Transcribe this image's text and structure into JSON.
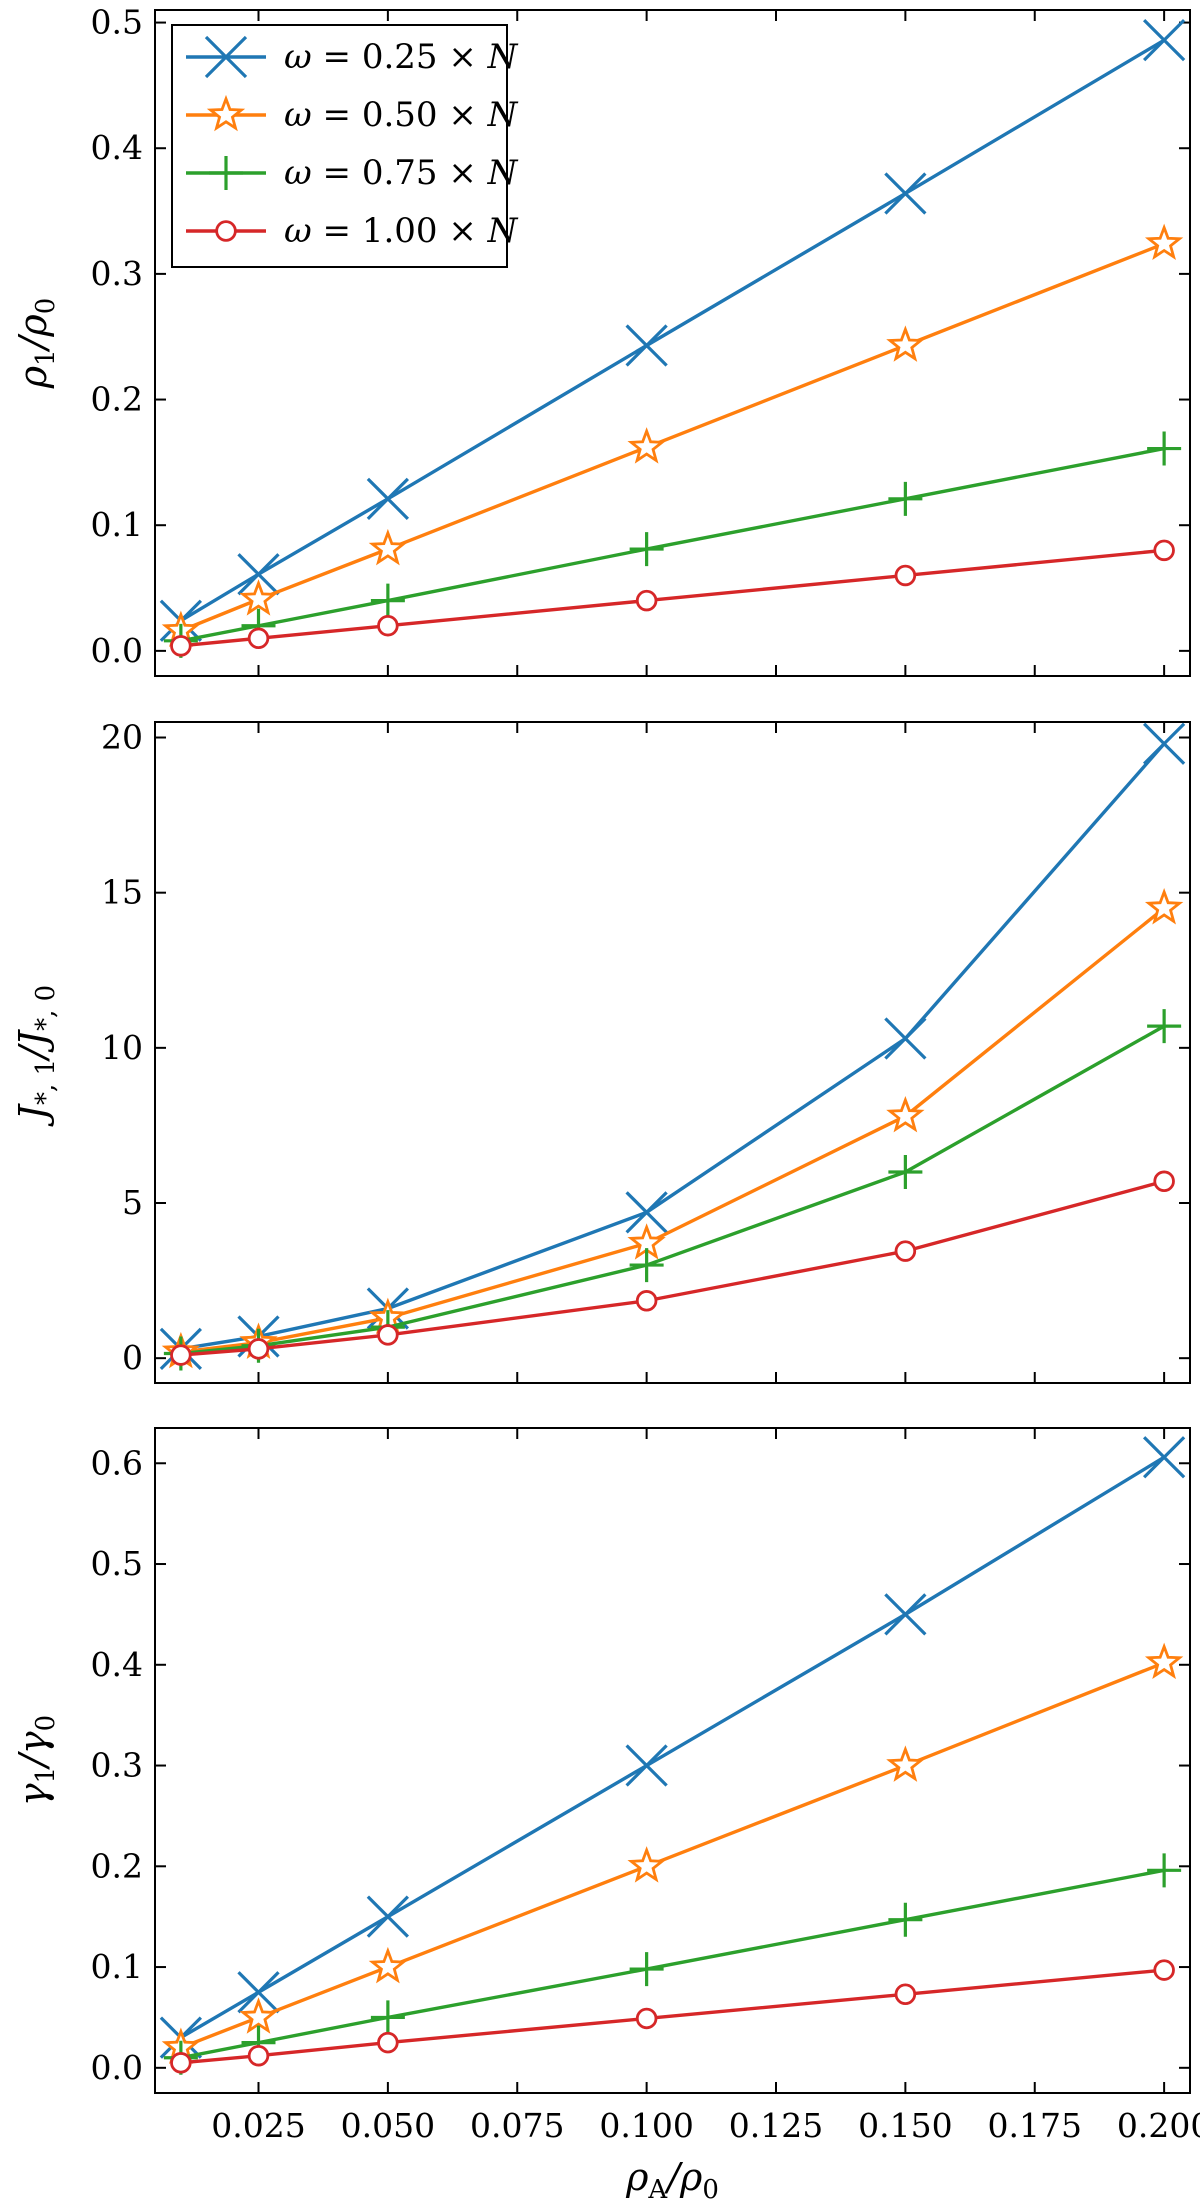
{
  "colors": {
    "blue": "#1f77b4",
    "orange": "#ff7f0e",
    "green": "#2ca02c",
    "red": "#d62728"
  },
  "chart_data": [
    {
      "type": "line",
      "xlabel": "",
      "ylabel_base": "ρ",
      "ylabel_num_sub": "1",
      "ylabel_den_sub": "0",
      "xlim": [
        0.005,
        0.205
      ],
      "ylim": [
        -0.02,
        0.51
      ],
      "xticks": [
        0.025,
        0.05,
        0.075,
        0.1,
        0.125,
        0.15,
        0.175,
        0.2
      ],
      "xtick_labels": [],
      "yticks": [
        0.0,
        0.1,
        0.2,
        0.3,
        0.4,
        0.5
      ],
      "ytick_labels": [
        "0.0",
        "0.1",
        "0.2",
        "0.3",
        "0.4",
        "0.5"
      ],
      "legend": "top-left",
      "grid": false,
      "x": [
        0.01,
        0.025,
        0.05,
        0.1,
        0.15,
        0.2
      ],
      "series": [
        {
          "name": "ω = 0.25 × N",
          "legend_prefix": "ω = ",
          "legend_value": "0.25",
          "legend_suffix": " × N",
          "color": "#1f77b4",
          "marker": "x",
          "values": [
            0.024,
            0.061,
            0.121,
            0.243,
            0.364,
            0.486
          ]
        },
        {
          "name": "ω = 0.50 × N",
          "legend_prefix": "ω = ",
          "legend_value": "0.50",
          "legend_suffix": " × N",
          "color": "#ff7f0e",
          "marker": "star",
          "values": [
            0.016,
            0.041,
            0.081,
            0.162,
            0.243,
            0.324
          ]
        },
        {
          "name": "ω = 0.75 × N",
          "legend_prefix": "ω = ",
          "legend_value": "0.75",
          "legend_suffix": " × N",
          "color": "#2ca02c",
          "marker": "plus",
          "values": [
            0.008,
            0.02,
            0.04,
            0.081,
            0.121,
            0.161
          ]
        },
        {
          "name": "ω = 1.00 × N",
          "legend_prefix": "ω = ",
          "legend_value": "1.00",
          "legend_suffix": " × N",
          "color": "#d62728",
          "marker": "circle",
          "values": [
            0.004,
            0.01,
            0.02,
            0.04,
            0.06,
            0.08
          ]
        }
      ]
    },
    {
      "type": "line",
      "xlabel": "",
      "ylabel_base": "J",
      "ylabel_num_sub": "*, 1",
      "ylabel_den_sub": "*, 0",
      "xlim": [
        0.005,
        0.205
      ],
      "ylim": [
        -0.8,
        20.5
      ],
      "xticks": [
        0.025,
        0.05,
        0.075,
        0.1,
        0.125,
        0.15,
        0.175,
        0.2
      ],
      "xtick_labels": [],
      "yticks": [
        0,
        5,
        10,
        15,
        20
      ],
      "ytick_labels": [
        "0",
        "5",
        "10",
        "15",
        "20"
      ],
      "grid": false,
      "x": [
        0.01,
        0.025,
        0.05,
        0.1,
        0.15,
        0.2
      ],
      "series": [
        {
          "color": "#1f77b4",
          "marker": "x",
          "values": [
            0.3,
            0.7,
            1.6,
            4.7,
            10.3,
            19.8
          ]
        },
        {
          "color": "#ff7f0e",
          "marker": "star",
          "values": [
            0.2,
            0.5,
            1.3,
            3.7,
            7.8,
            14.5
          ]
        },
        {
          "color": "#2ca02c",
          "marker": "plus",
          "values": [
            0.15,
            0.4,
            1.0,
            3.0,
            6.0,
            10.7
          ]
        },
        {
          "color": "#d62728",
          "marker": "circle",
          "values": [
            0.1,
            0.3,
            0.75,
            1.85,
            3.45,
            5.7
          ]
        }
      ]
    },
    {
      "type": "line",
      "xlabel_base": "ρ",
      "xlabel_num_sub": "A",
      "xlabel_den_sub": "0",
      "ylabel_base": "γ",
      "ylabel_num_sub": "1",
      "ylabel_den_sub": "0",
      "xlim": [
        0.005,
        0.205
      ],
      "ylim": [
        -0.025,
        0.635
      ],
      "xticks": [
        0.025,
        0.05,
        0.075,
        0.1,
        0.125,
        0.15,
        0.175,
        0.2
      ],
      "xtick_labels": [
        "0.025",
        "0.050",
        "0.075",
        "0.100",
        "0.125",
        "0.150",
        "0.175",
        "0.200"
      ],
      "yticks": [
        0.0,
        0.1,
        0.2,
        0.3,
        0.4,
        0.5,
        0.6
      ],
      "ytick_labels": [
        "0.0",
        "0.1",
        "0.2",
        "0.3",
        "0.4",
        "0.5",
        "0.6"
      ],
      "grid": false,
      "x": [
        0.01,
        0.025,
        0.05,
        0.1,
        0.15,
        0.2
      ],
      "series": [
        {
          "color": "#1f77b4",
          "marker": "x",
          "values": [
            0.03,
            0.075,
            0.15,
            0.3,
            0.45,
            0.606
          ]
        },
        {
          "color": "#ff7f0e",
          "marker": "star",
          "values": [
            0.02,
            0.05,
            0.1,
            0.2,
            0.3,
            0.402
          ]
        },
        {
          "color": "#2ca02c",
          "marker": "plus",
          "values": [
            0.01,
            0.025,
            0.05,
            0.098,
            0.147,
            0.196
          ]
        },
        {
          "color": "#d62728",
          "marker": "circle",
          "values": [
            0.005,
            0.012,
            0.025,
            0.049,
            0.073,
            0.097
          ]
        }
      ]
    }
  ]
}
